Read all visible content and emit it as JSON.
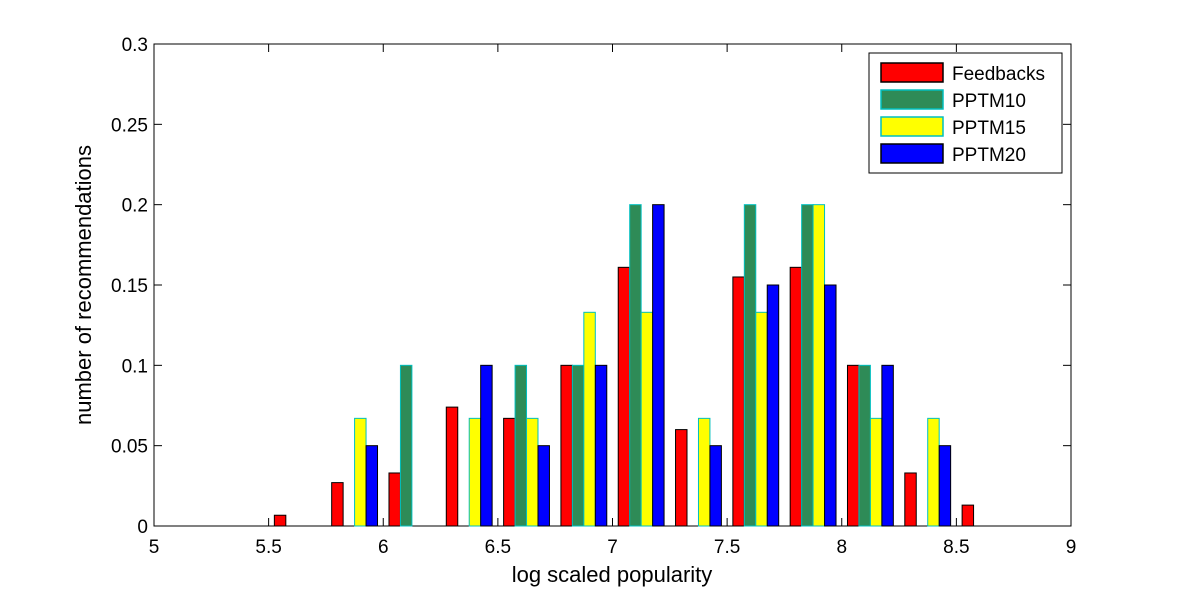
{
  "chart_data": {
    "type": "bar",
    "title": "",
    "xlabel": "log scaled popularity",
    "ylabel": "number of recommendations",
    "xlim": [
      5,
      9
    ],
    "ylim": [
      0,
      0.3
    ],
    "xticks": [
      "5",
      "5.5",
      "6",
      "6.5",
      "7",
      "7.5",
      "8",
      "8.5",
      "9"
    ],
    "yticks": [
      "0",
      "0.05",
      "0.1",
      "0.15",
      "0.2",
      "0.25",
      "0.3"
    ],
    "x": [
      5.125,
      5.375,
      5.625,
      5.875,
      6.125,
      6.375,
      6.625,
      6.875,
      7.125,
      7.375,
      7.625,
      7.875,
      8.125,
      8.375,
      8.625,
      8.875
    ],
    "legend_position": "top-right",
    "grid": false,
    "series": [
      {
        "name": "Feedbacks",
        "color": "#ff0000",
        "edge": "#000000",
        "values": [
          0,
          0,
          0.0067,
          0.027,
          0.033,
          0.074,
          0.067,
          0.1,
          0.161,
          0.06,
          0.155,
          0.161,
          0.1,
          0.033,
          0.013,
          0
        ]
      },
      {
        "name": "PPTM10",
        "color": "#2e8b57",
        "edge": "#00bfbf",
        "values": [
          0,
          0,
          0,
          0,
          0.1,
          0,
          0.1,
          0.1,
          0.2,
          0,
          0.2,
          0.2,
          0.1,
          0,
          0,
          0
        ]
      },
      {
        "name": "PPTM15",
        "color": "#ffff00",
        "edge": "#00bfbf",
        "values": [
          0,
          0,
          0,
          0.067,
          0,
          0.067,
          0.067,
          0.133,
          0.133,
          0.067,
          0.133,
          0.2,
          0.067,
          0.067,
          0,
          0
        ]
      },
      {
        "name": "PPTM20",
        "color": "#0000ff",
        "edge": "#000000",
        "values": [
          0,
          0,
          0,
          0.05,
          0,
          0.1,
          0.05,
          0.1,
          0.2,
          0.05,
          0.15,
          0.15,
          0.1,
          0.05,
          0,
          0
        ]
      }
    ]
  }
}
